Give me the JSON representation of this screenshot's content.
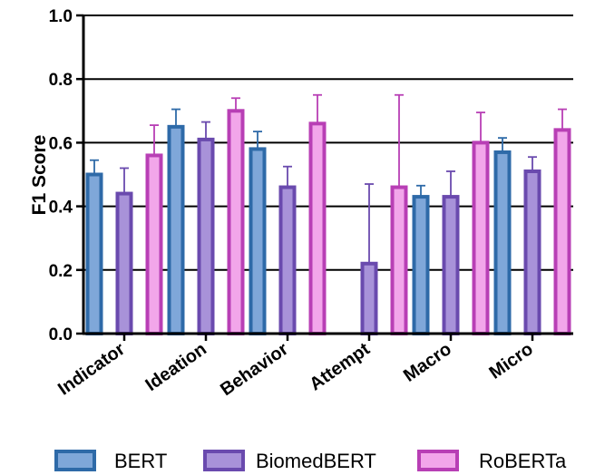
{
  "chart_data": {
    "type": "bar",
    "ylabel": "F1 Score",
    "xlabel": "",
    "ylim": [
      0,
      1.0
    ],
    "yticks": [
      "0.0",
      "0.2",
      "0.4",
      "0.6",
      "0.8",
      "1.0"
    ],
    "categories": [
      "Indicator",
      "Ideation",
      "Behavior",
      "Attempt",
      "Macro",
      "Micro"
    ],
    "grid": "horizontal",
    "legend_position": "bottom",
    "series": [
      {
        "name": "BERT",
        "fill": "#7fa7d9",
        "stroke": "#2e6aa8",
        "values": [
          0.5,
          0.65,
          0.58,
          0.0,
          0.43,
          0.57
        ],
        "error": [
          0.045,
          0.055,
          0.055,
          0.0,
          0.035,
          0.045
        ]
      },
      {
        "name": "BiomedBERT",
        "fill": "#a892d9",
        "stroke": "#6a4aae",
        "values": [
          0.44,
          0.61,
          0.46,
          0.22,
          0.43,
          0.51
        ],
        "error": [
          0.08,
          0.055,
          0.065,
          0.25,
          0.08,
          0.045
        ]
      },
      {
        "name": "RoBERTa",
        "fill": "#f2a6ea",
        "stroke": "#b83fb5",
        "values": [
          0.56,
          0.7,
          0.66,
          0.46,
          0.6,
          0.64
        ],
        "error": [
          0.095,
          0.04,
          0.09,
          0.29,
          0.095,
          0.065
        ]
      }
    ]
  }
}
